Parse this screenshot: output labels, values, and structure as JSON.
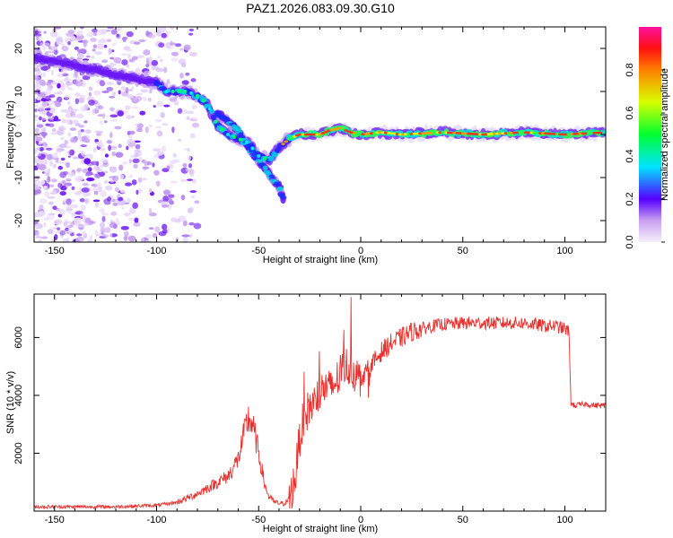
{
  "title": "PAZ1.2026.083.09.30.G10",
  "chart_data": [
    {
      "type": "heatmap",
      "title": "PAZ1.2026.083.09.30.G10",
      "xlabel": "Height of straight line (km)",
      "ylabel": "Frequency (Hz)",
      "xlim": [
        -160,
        120
      ],
      "ylim": [
        -25,
        25
      ],
      "xticks": [
        -150,
        -100,
        -50,
        0,
        50,
        100
      ],
      "yticks": [
        -20,
        -10,
        0,
        10,
        20
      ],
      "grid": false,
      "ridge": {
        "x": [
          -160,
          -100,
          -95,
          -90,
          -85,
          -80,
          -75,
          -70,
          -65,
          -60,
          -55,
          -50,
          -45,
          -40,
          -35,
          -30,
          -25,
          -20,
          -15,
          -10,
          -5,
          0,
          10,
          20,
          40,
          60,
          80,
          100,
          120
        ],
        "y": [
          18,
          12,
          10,
          10,
          10,
          9,
          7,
          2,
          0,
          -1,
          -2,
          -5,
          -6,
          -3,
          -1,
          0,
          0,
          0,
          1,
          1.5,
          0.5,
          0,
          0.5,
          0,
          0.5,
          0,
          0.5,
          0,
          0.5
        ]
      },
      "branch": {
        "x": [
          -70,
          -65,
          -60,
          -55,
          -50,
          -45,
          -40,
          -38
        ],
        "y": [
          5,
          3,
          1,
          -3,
          -6,
          -9,
          -12,
          -15
        ]
      },
      "colorbar": {
        "label": "Normalized spectral amplitude",
        "ticks": [
          "0.0",
          "0.2",
          "0.4",
          "0.6",
          "0.8"
        ],
        "range": [
          0,
          1
        ]
      }
    },
    {
      "type": "line",
      "title": "",
      "xlabel": "Height of straight line (km)",
      "ylabel": "SNR (10 * v/v)",
      "xlim": [
        -160,
        120
      ],
      "ylim": [
        0,
        7500
      ],
      "xticks": [
        -150,
        -100,
        -50,
        0,
        50,
        100
      ],
      "yticks": [
        2000,
        4000,
        6000
      ],
      "grid": false,
      "series": [
        {
          "name": "SNR",
          "color": "#e8312f",
          "x": [
            -160,
            -140,
            -120,
            -100,
            -90,
            -80,
            -70,
            -65,
            -60,
            -57,
            -55,
            -53,
            -50,
            -47,
            -45,
            -42,
            -38,
            -35,
            -32,
            -30,
            -28,
            -25,
            -22,
            -20,
            -18,
            -15,
            -12,
            -10,
            -8,
            -5,
            -3,
            0,
            5,
            10,
            15,
            20,
            25,
            30,
            35,
            40,
            50,
            60,
            70,
            80,
            90,
            95,
            100,
            102,
            103,
            105,
            110,
            115,
            120
          ],
          "y": [
            150,
            150,
            150,
            200,
            300,
            600,
            1000,
            1200,
            1800,
            2700,
            3200,
            3000,
            2000,
            900,
            500,
            300,
            250,
            400,
            1200,
            2500,
            3200,
            3600,
            3800,
            4000,
            4300,
            4200,
            4500,
            4700,
            5000,
            5000,
            4800,
            4600,
            5000,
            5500,
            5800,
            6000,
            6200,
            6300,
            6400,
            6450,
            6500,
            6500,
            6500,
            6500,
            6400,
            6400,
            6300,
            6200,
            3700,
            3650,
            3700,
            3650,
            3650
          ]
        }
      ]
    }
  ]
}
